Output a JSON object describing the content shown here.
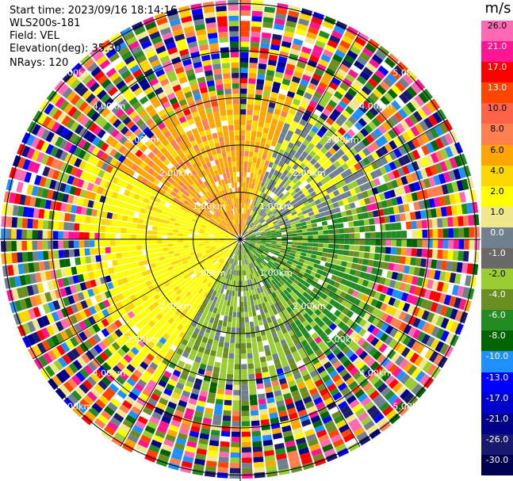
{
  "header": {
    "start_time": "Start time: 2023/09/16 18:14:16",
    "instrument": "WLS200s-181",
    "field": "Field: VEL",
    "elevation": "Elevation(deg): 35.30",
    "nrays": "NRays: 120"
  },
  "colorbar": {
    "unit": "m/s",
    "ticks": [
      "26.0",
      "21.0",
      "17.0",
      "13.0",
      "10.0",
      "8.0",
      "6.0",
      "4.0",
      "2.0",
      "1.0",
      "0.0",
      "-1.0",
      "-2.0",
      "-4.0",
      "-6.0",
      "-8.0",
      "-10.0",
      "-13.0",
      "-17.0",
      "-21.0",
      "-26.0",
      "-30.0"
    ],
    "colors": [
      "#ff69b4",
      "#ff1493",
      "#ff0000",
      "#ff4500",
      "#ff6347",
      "#ff7f50",
      "#ffa500",
      "#ffd700",
      "#ffff00",
      "#f0e68c",
      "#708090",
      "#696969",
      "#9acd32",
      "#6b8e23",
      "#228b22",
      "#006400",
      "#1e90ff",
      "#0000ff",
      "#0000cd",
      "#00008b",
      "#191970",
      "#000050"
    ]
  },
  "ring_labels": [
    "1.00km",
    "2.00km",
    "3.00km",
    "4.00km",
    "5.00km"
  ]
}
